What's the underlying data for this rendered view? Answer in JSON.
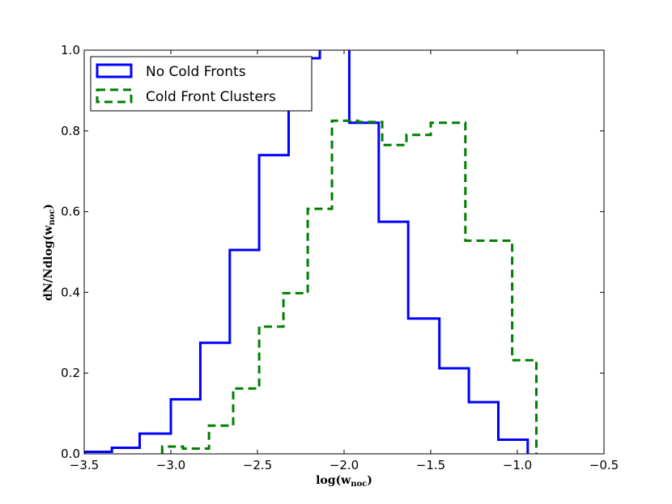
{
  "chart_data": {
    "type": "histogram-step",
    "xlabel": "log(w",
    "xlabel_sub": "noc",
    "xlabel_close": ")",
    "ylabel": "dN/Ndlog(w",
    "ylabel_sub": "noc",
    "ylabel_close": ")",
    "xlim": [
      -3.5,
      -0.5
    ],
    "ylim": [
      0.0,
      1.0
    ],
    "xticks": [
      -3.5,
      -3.0,
      -2.5,
      -2.0,
      -1.5,
      -1.0,
      -0.5
    ],
    "xtick_labels": [
      "−3.5",
      "−3.0",
      "−2.5",
      "−2.0",
      "−1.5",
      "−1.0",
      "−0.5"
    ],
    "yticks": [
      0.0,
      0.2,
      0.4,
      0.6,
      0.8,
      1.0
    ],
    "ytick_labels": [
      "0.0",
      "0.2",
      "0.4",
      "0.6",
      "0.8",
      "1.0"
    ],
    "grid": false,
    "legend_position": "top-left",
    "series": [
      {
        "name": "No Cold Fronts",
        "color": "#0000ff",
        "style": "solid",
        "edges": [
          -3.5,
          -3.34,
          -3.18,
          -3.0,
          -2.83,
          -2.66,
          -2.49,
          -2.32,
          -2.14,
          -1.97,
          -1.8,
          -1.63,
          -1.45,
          -1.28,
          -1.11,
          -0.94
        ],
        "values": [
          0.005,
          0.015,
          0.05,
          0.135,
          0.275,
          0.505,
          0.74,
          0.98,
          1.05,
          0.82,
          0.575,
          0.335,
          0.212,
          0.128,
          0.035
        ]
      },
      {
        "name": "Cold Front Clusters",
        "color": "#007f00",
        "style": "dashed",
        "edges": [
          -3.05,
          -2.93,
          -2.78,
          -2.64,
          -2.49,
          -2.35,
          -2.21,
          -2.07,
          -1.92,
          -1.78,
          -1.64,
          -1.5,
          -1.3,
          -1.03,
          -0.89
        ],
        "values": [
          0.018,
          0.013,
          0.07,
          0.162,
          0.315,
          0.398,
          0.607,
          0.825,
          0.822,
          0.765,
          0.79,
          0.82,
          0.528,
          0.232
        ]
      }
    ]
  }
}
